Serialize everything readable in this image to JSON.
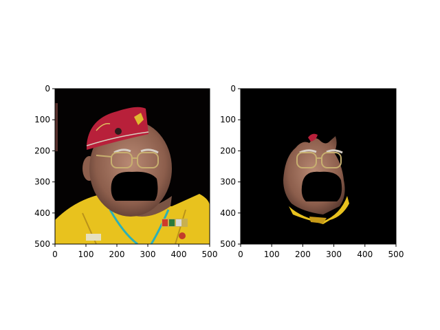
{
  "figure": {
    "background": "#ffffff"
  },
  "chart_data": [
    {
      "type": "image",
      "panel": "left",
      "title": "",
      "xlabel": "",
      "ylabel": "",
      "xlim": [
        0,
        500
      ],
      "ylim": [
        500,
        0
      ],
      "xticks": [
        0,
        100,
        200,
        300,
        400,
        500
      ],
      "yticks": [
        0,
        100,
        200,
        300,
        400,
        500
      ],
      "image_content": "photo of an older man wearing a red cap with emblem, glasses and a yellow shirt with patches and beaded necklace, lower face blacked out",
      "colors": {
        "background": "#040202",
        "cap": "#b8203a",
        "shirt": "#e8c21e",
        "skin": "#9a6a58",
        "mask": "#000000"
      },
      "grid": false,
      "legend": "none"
    },
    {
      "type": "image",
      "panel": "right",
      "title": "",
      "xlabel": "",
      "ylabel": "",
      "xlim": [
        0,
        500
      ],
      "ylim": [
        500,
        0
      ],
      "xticks": [
        0,
        100,
        200,
        300,
        400,
        500
      ],
      "yticks": [
        0,
        100,
        200,
        300,
        400,
        500
      ],
      "image_content": "segmented face region of the same man on a black background, lower face blacked out",
      "colors": {
        "background": "#000000",
        "skin": "#9a6a58",
        "cap": "#b8203a",
        "shirt": "#e8c21e",
        "mask": "#000000"
      },
      "grid": false,
      "legend": "none"
    }
  ]
}
